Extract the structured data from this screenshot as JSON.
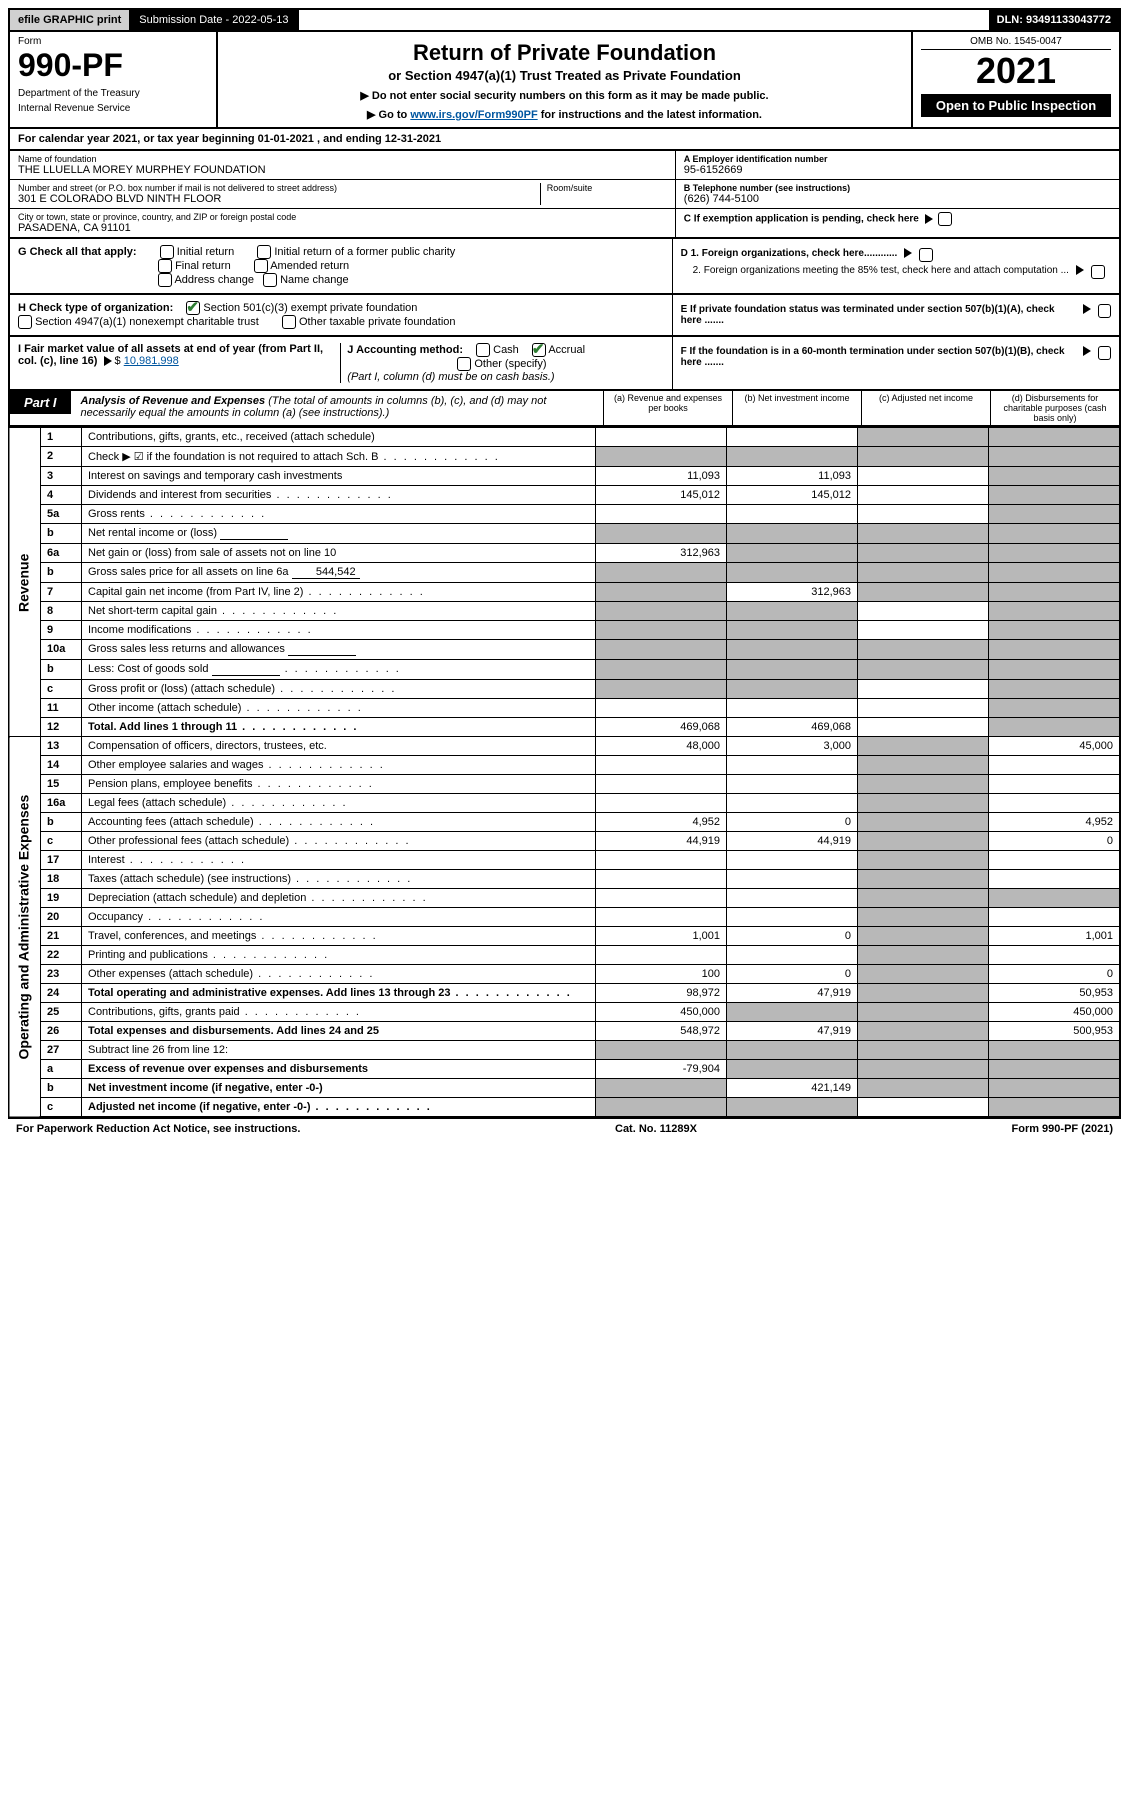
{
  "topbar": {
    "efile": "efile GRAPHIC print",
    "subdate_label": "Submission Date - 2022-05-13",
    "dln": "DLN: 93491133043772"
  },
  "header": {
    "form_label": "Form",
    "form_number": "990-PF",
    "dept1": "Department of the Treasury",
    "dept2": "Internal Revenue Service",
    "title": "Return of Private Foundation",
    "subtitle": "or Section 4947(a)(1) Trust Treated as Private Foundation",
    "note1": "▶ Do not enter social security numbers on this form as it may be made public.",
    "note2_pre": "▶ Go to ",
    "note2_link": "www.irs.gov/Form990PF",
    "note2_post": " for instructions and the latest information.",
    "omb": "OMB No. 1545-0047",
    "year": "2021",
    "open": "Open to Public Inspection"
  },
  "calendar": "For calendar year 2021, or tax year beginning 01-01-2021                              , and ending 12-31-2021",
  "info": {
    "name_label": "Name of foundation",
    "name": "THE LLUELLA MOREY MURPHEY FOUNDATION",
    "addr_label": "Number and street (or P.O. box number if mail is not delivered to street address)",
    "addr": "301 E COLORADO BLVD NINTH FLOOR",
    "room_label": "Room/suite",
    "city_label": "City or town, state or province, country, and ZIP or foreign postal code",
    "city": "PASADENA, CA  91101",
    "a_label": "A Employer identification number",
    "a_val": "95-6152669",
    "b_label": "B Telephone number (see instructions)",
    "b_val": "(626) 744-5100",
    "c_label": "C If exemption application is pending, check here",
    "d1": "D 1. Foreign organizations, check here............",
    "d2": "2. Foreign organizations meeting the 85% test, check here and attach computation ...",
    "e": "E  If private foundation status was terminated under section 507(b)(1)(A), check here .......",
    "f": "F  If the foundation is in a 60-month termination under section 507(b)(1)(B), check here .......",
    "g_label": "G Check all that apply:",
    "g_opts": [
      "Initial return",
      "Final return",
      "Address change",
      "Initial return of a former public charity",
      "Amended return",
      "Name change"
    ],
    "h_label": "H Check type of organization:",
    "h_1": "Section 501(c)(3) exempt private foundation",
    "h_2": "Section 4947(a)(1) nonexempt charitable trust",
    "h_3": "Other taxable private foundation",
    "i_label": "I Fair market value of all assets at end of year (from Part II, col. (c), line 16)",
    "i_val": "10,981,998",
    "j_label": "J Accounting method:",
    "j_cash": "Cash",
    "j_accrual": "Accrual",
    "j_other": "Other (specify)",
    "j_note": "(Part I, column (d) must be on cash basis.)"
  },
  "part1": {
    "label": "Part I",
    "title": "Analysis of Revenue and Expenses",
    "title_note": "(The total of amounts in columns (b), (c), and (d) may not necessarily equal the amounts in column (a) (see instructions).)",
    "cols": {
      "a": "(a)   Revenue and expenses per books",
      "b": "(b)   Net investment income",
      "c": "(c)   Adjusted net income",
      "d": "(d)   Disbursements for charitable purposes (cash basis only)"
    }
  },
  "sections": {
    "revenue": "Revenue",
    "opadmin": "Operating and Administrative Expenses"
  },
  "rows": [
    {
      "n": "1",
      "d": "Contributions, gifts, grants, etc., received (attach schedule)",
      "a": "",
      "b": "",
      "c": "g",
      "dd": "g"
    },
    {
      "n": "2",
      "d": "Check ▶ ☑ if the foundation is not required to attach Sch. B",
      "a": "g",
      "b": "g",
      "c": "g",
      "dd": "g",
      "dotted": true
    },
    {
      "n": "3",
      "d": "Interest on savings and temporary cash investments",
      "a": "11,093",
      "b": "11,093",
      "c": "",
      "dd": "g"
    },
    {
      "n": "4",
      "d": "Dividends and interest from securities",
      "a": "145,012",
      "b": "145,012",
      "c": "",
      "dd": "g",
      "dotted": true
    },
    {
      "n": "5a",
      "d": "Gross rents",
      "a": "",
      "b": "",
      "c": "",
      "dd": "g",
      "dotted": true
    },
    {
      "n": "b",
      "d": "Net rental income or (loss)",
      "a": "g",
      "b": "g",
      "c": "g",
      "dd": "g",
      "inline": true
    },
    {
      "n": "6a",
      "d": "Net gain or (loss) from sale of assets not on line 10",
      "a": "312,963",
      "b": "g",
      "c": "g",
      "dd": "g"
    },
    {
      "n": "b",
      "d": "Gross sales price for all assets on line 6a",
      "a": "g",
      "b": "g",
      "c": "g",
      "dd": "g",
      "inline": true,
      "inlineval": "544,542"
    },
    {
      "n": "7",
      "d": "Capital gain net income (from Part IV, line 2)",
      "a": "g",
      "b": "312,963",
      "c": "g",
      "dd": "g",
      "dotted": true
    },
    {
      "n": "8",
      "d": "Net short-term capital gain",
      "a": "g",
      "b": "g",
      "c": "",
      "dd": "g",
      "dotted": true
    },
    {
      "n": "9",
      "d": "Income modifications",
      "a": "g",
      "b": "g",
      "c": "",
      "dd": "g",
      "dotted": true
    },
    {
      "n": "10a",
      "d": "Gross sales less returns and allowances",
      "a": "g",
      "b": "g",
      "c": "g",
      "dd": "g",
      "inline": true
    },
    {
      "n": "b",
      "d": "Less: Cost of goods sold",
      "a": "g",
      "b": "g",
      "c": "g",
      "dd": "g",
      "inline": true,
      "dotted": true
    },
    {
      "n": "c",
      "d": "Gross profit or (loss) (attach schedule)",
      "a": "g",
      "b": "g",
      "c": "",
      "dd": "g",
      "dotted": true
    },
    {
      "n": "11",
      "d": "Other income (attach schedule)",
      "a": "",
      "b": "",
      "c": "",
      "dd": "g",
      "dotted": true
    },
    {
      "n": "12",
      "d": "Total. Add lines 1 through 11",
      "a": "469,068",
      "b": "469,068",
      "c": "",
      "dd": "g",
      "bold": true,
      "dotted": true
    }
  ],
  "exp_rows": [
    {
      "n": "13",
      "d": "Compensation of officers, directors, trustees, etc.",
      "a": "48,000",
      "b": "3,000",
      "c": "g",
      "dd": "45,000"
    },
    {
      "n": "14",
      "d": "Other employee salaries and wages",
      "a": "",
      "b": "",
      "c": "g",
      "dd": "",
      "dotted": true
    },
    {
      "n": "15",
      "d": "Pension plans, employee benefits",
      "a": "",
      "b": "",
      "c": "g",
      "dd": "",
      "dotted": true
    },
    {
      "n": "16a",
      "d": "Legal fees (attach schedule)",
      "a": "",
      "b": "",
      "c": "g",
      "dd": "",
      "dotted": true
    },
    {
      "n": "b",
      "d": "Accounting fees (attach schedule)",
      "a": "4,952",
      "b": "0",
      "c": "g",
      "dd": "4,952",
      "dotted": true
    },
    {
      "n": "c",
      "d": "Other professional fees (attach schedule)",
      "a": "44,919",
      "b": "44,919",
      "c": "g",
      "dd": "0",
      "dotted": true
    },
    {
      "n": "17",
      "d": "Interest",
      "a": "",
      "b": "",
      "c": "g",
      "dd": "",
      "dotted": true
    },
    {
      "n": "18",
      "d": "Taxes (attach schedule) (see instructions)",
      "a": "",
      "b": "",
      "c": "g",
      "dd": "",
      "dotted": true
    },
    {
      "n": "19",
      "d": "Depreciation (attach schedule) and depletion",
      "a": "",
      "b": "",
      "c": "g",
      "dd": "g",
      "dotted": true
    },
    {
      "n": "20",
      "d": "Occupancy",
      "a": "",
      "b": "",
      "c": "g",
      "dd": "",
      "dotted": true
    },
    {
      "n": "21",
      "d": "Travel, conferences, and meetings",
      "a": "1,001",
      "b": "0",
      "c": "g",
      "dd": "1,001",
      "dotted": true
    },
    {
      "n": "22",
      "d": "Printing and publications",
      "a": "",
      "b": "",
      "c": "g",
      "dd": "",
      "dotted": true
    },
    {
      "n": "23",
      "d": "Other expenses (attach schedule)",
      "a": "100",
      "b": "0",
      "c": "g",
      "dd": "0",
      "dotted": true
    },
    {
      "n": "24",
      "d": "Total operating and administrative expenses. Add lines 13 through 23",
      "a": "98,972",
      "b": "47,919",
      "c": "g",
      "dd": "50,953",
      "bold": true,
      "dotted": true
    },
    {
      "n": "25",
      "d": "Contributions, gifts, grants paid",
      "a": "450,000",
      "b": "g",
      "c": "g",
      "dd": "450,000",
      "dotted": true
    },
    {
      "n": "26",
      "d": "Total expenses and disbursements. Add lines 24 and 25",
      "a": "548,972",
      "b": "47,919",
      "c": "g",
      "dd": "500,953",
      "bold": true
    },
    {
      "n": "27",
      "d": "Subtract line 26 from line 12:",
      "a": "g",
      "b": "g",
      "c": "g",
      "dd": "g"
    },
    {
      "n": "a",
      "d": "Excess of revenue over expenses and disbursements",
      "a": "-79,904",
      "b": "g",
      "c": "g",
      "dd": "g",
      "bold": true
    },
    {
      "n": "b",
      "d": "Net investment income (if negative, enter -0-)",
      "a": "g",
      "b": "421,149",
      "c": "g",
      "dd": "g",
      "bold": true
    },
    {
      "n": "c",
      "d": "Adjusted net income (if negative, enter -0-)",
      "a": "g",
      "b": "g",
      "c": "",
      "dd": "g",
      "bold": true,
      "dotted": true
    }
  ],
  "footer": {
    "left": "For Paperwork Reduction Act Notice, see instructions.",
    "mid": "Cat. No. 11289X",
    "right": "Form 990-PF (2021)"
  }
}
